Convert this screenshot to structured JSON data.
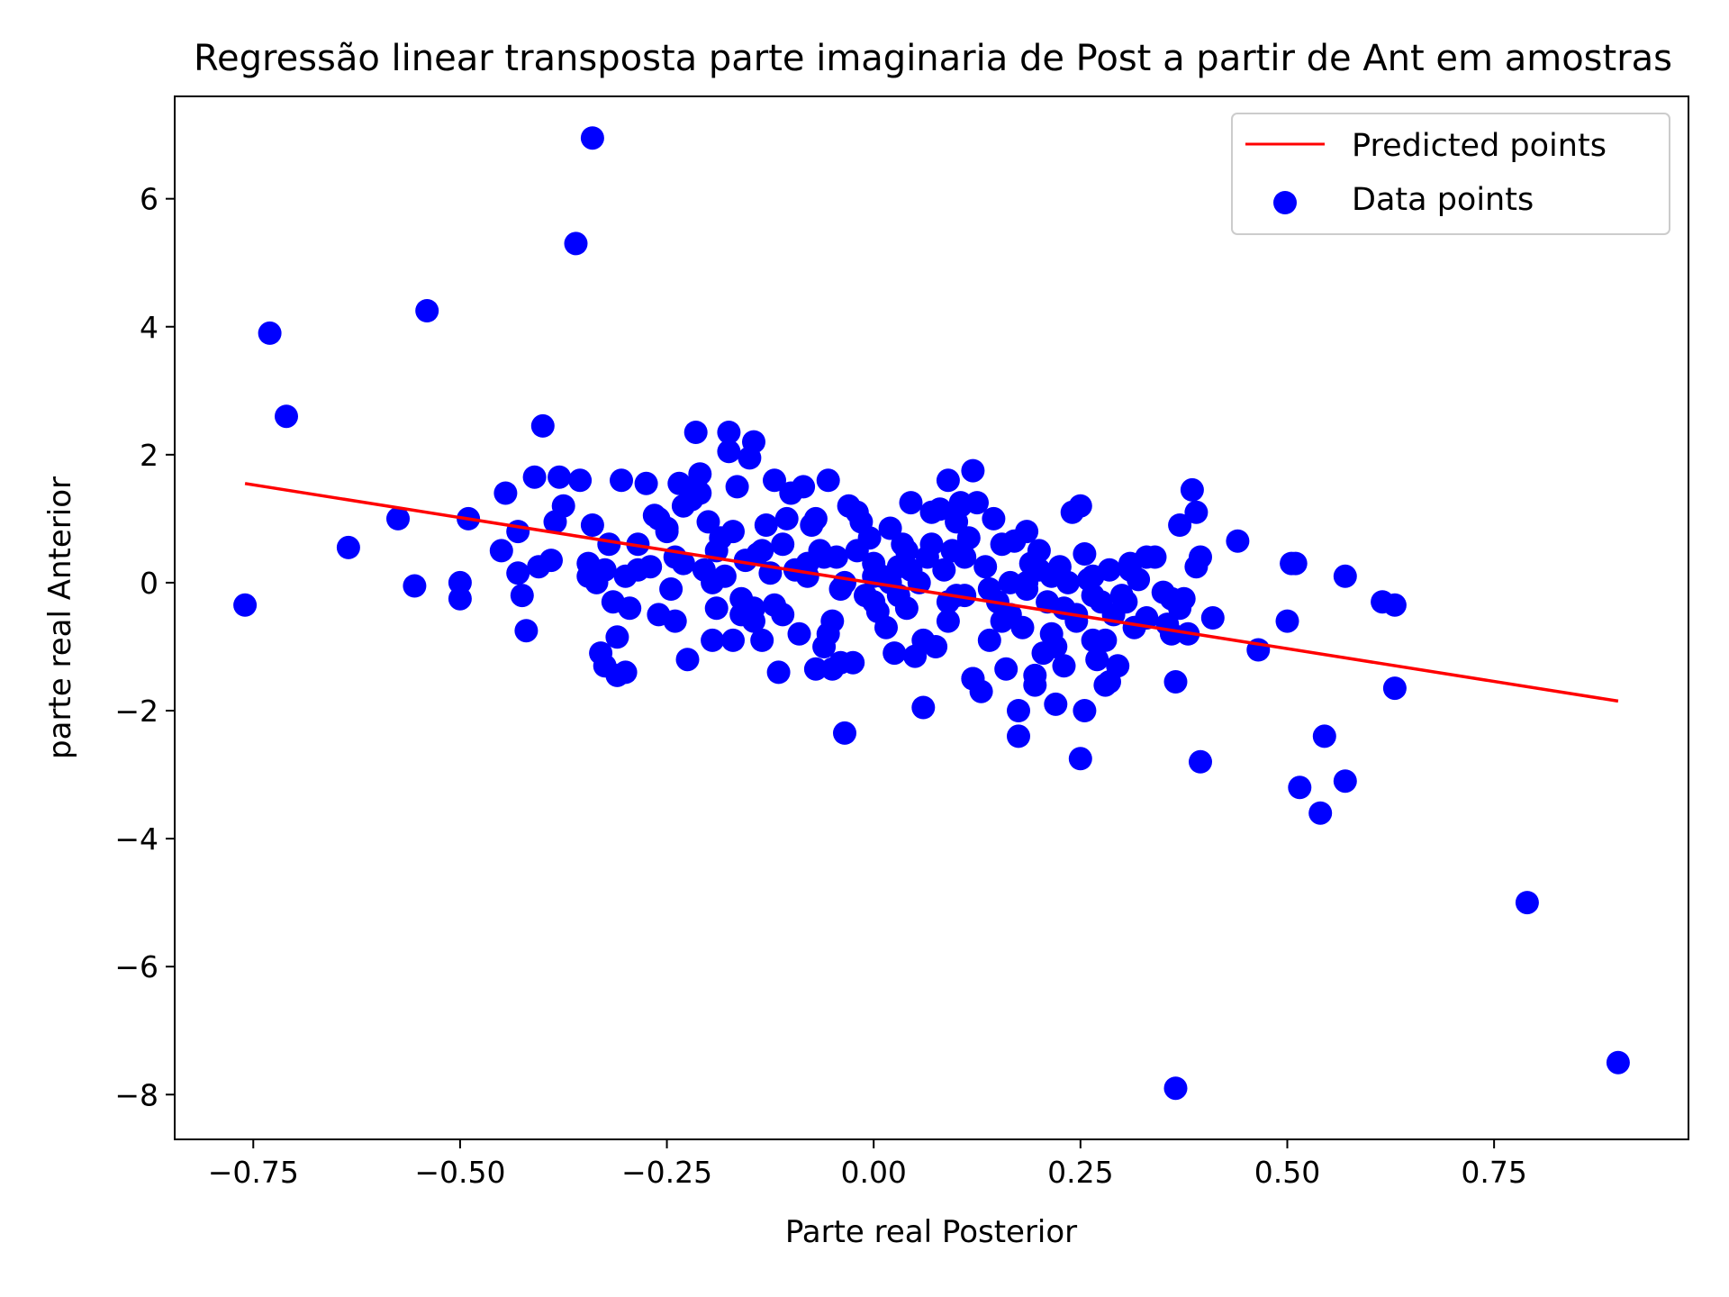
{
  "chart_data": {
    "type": "scatter",
    "title": "Regressão linear transposta parte imaginaria de Post a partir de Ant em amostras",
    "xlabel": "Parte real Posterior",
    "ylabel": "parte real Anterior",
    "xlim": [
      -0.845,
      0.985
    ],
    "ylim": [
      -8.7,
      7.6
    ],
    "xticks": [
      -0.75,
      -0.5,
      -0.25,
      0.0,
      0.25,
      0.5,
      0.75
    ],
    "xtick_labels": [
      "−0.75",
      "−0.50",
      "−0.25",
      "0.00",
      "0.25",
      "0.50",
      "0.75"
    ],
    "yticks": [
      -8,
      -6,
      -4,
      -2,
      0,
      2,
      4,
      6
    ],
    "ytick_labels": [
      "−8",
      "−6",
      "−4",
      "−2",
      "0",
      "2",
      "4",
      "6"
    ],
    "grid": false,
    "legend_position": "top-right",
    "series": [
      {
        "name": "Predicted points",
        "kind": "line",
        "color": "#ff0000",
        "x": [
          -0.76,
          0.9
        ],
        "y": [
          1.55,
          -1.85
        ]
      },
      {
        "name": "Data points",
        "kind": "scatter",
        "color": "#0000ff",
        "x": [
          -0.34,
          -0.36,
          -0.54,
          -0.73,
          -0.71,
          -0.76,
          -0.635,
          -0.575,
          -0.555,
          -0.5,
          -0.5,
          -0.49,
          -0.445,
          -0.45,
          -0.43,
          -0.43,
          -0.425,
          -0.42,
          -0.41,
          -0.405,
          -0.4,
          -0.39,
          -0.385,
          -0.38,
          -0.375,
          -0.355,
          -0.345,
          -0.34,
          -0.335,
          -0.33,
          -0.325,
          -0.32,
          -0.31,
          -0.305,
          -0.3,
          -0.295,
          -0.285,
          -0.275,
          -0.27,
          -0.265,
          -0.26,
          -0.25,
          -0.245,
          -0.24,
          -0.235,
          -0.23,
          -0.225,
          -0.22,
          -0.215,
          -0.21,
          -0.205,
          -0.2,
          -0.195,
          -0.19,
          -0.185,
          -0.18,
          -0.175,
          -0.17,
          -0.165,
          -0.16,
          -0.155,
          -0.15,
          -0.145,
          -0.14,
          -0.135,
          -0.13,
          -0.125,
          -0.12,
          -0.115,
          -0.11,
          -0.105,
          -0.1,
          -0.095,
          -0.09,
          -0.085,
          -0.08,
          -0.075,
          -0.07,
          -0.065,
          -0.06,
          -0.055,
          -0.05,
          -0.045,
          -0.04,
          -0.035,
          -0.03,
          -0.025,
          -0.02,
          -0.015,
          -0.01,
          -0.005,
          0.0,
          0.005,
          0.01,
          0.015,
          0.02,
          0.025,
          0.03,
          0.035,
          0.04,
          0.045,
          0.05,
          0.055,
          0.06,
          0.065,
          0.07,
          0.075,
          0.08,
          0.085,
          0.09,
          0.095,
          0.1,
          0.105,
          0.11,
          0.115,
          0.12,
          0.125,
          0.13,
          0.135,
          0.14,
          0.145,
          0.15,
          0.155,
          0.16,
          0.165,
          0.17,
          0.175,
          0.18,
          0.185,
          0.19,
          0.195,
          0.2,
          0.205,
          0.21,
          0.215,
          0.22,
          0.225,
          0.23,
          0.235,
          0.24,
          0.245,
          0.25,
          0.255,
          0.26,
          0.265,
          0.27,
          0.275,
          0.28,
          0.285,
          0.29,
          0.295,
          0.3,
          0.31,
          0.315,
          0.32,
          0.33,
          0.34,
          0.35,
          0.355,
          0.36,
          0.365,
          0.37,
          0.375,
          0.38,
          0.39,
          0.395,
          0.41,
          0.44,
          0.465,
          0.5,
          0.505,
          0.51,
          0.515,
          0.545,
          0.54,
          0.57,
          0.57,
          0.615,
          0.63,
          0.63,
          0.79,
          0.9,
          0.365,
          0.385,
          0.39,
          -0.21,
          -0.175,
          -0.145,
          -0.02,
          0.105,
          0.25,
          0.09,
          0.12,
          -0.23,
          -0.215,
          -0.12,
          -0.07,
          -0.05,
          0.04,
          0.0,
          -0.19,
          -0.17,
          -0.26,
          -0.285,
          -0.3,
          -0.31,
          0.12,
          0.22,
          0.06,
          -0.035,
          0.175,
          0.195,
          0.255,
          0.285,
          0.36,
          0.37,
          0.395,
          -0.315,
          -0.325,
          -0.11,
          -0.145,
          -0.055,
          0.155,
          0.215,
          0.28,
          0.31,
          -0.135,
          -0.195,
          -0.24,
          -0.345,
          0.0,
          0.03,
          0.07,
          0.09,
          0.14,
          0.2,
          0.23,
          0.265,
          -0.08,
          -0.06,
          0.045,
          0.1,
          0.165,
          0.185,
          0.245,
          0.33,
          -0.25,
          -0.16,
          -0.04,
          0.02,
          0.11,
          0.185,
          0.265,
          0.305
        ],
        "y": [
          6.95,
          5.3,
          4.25,
          3.9,
          2.6,
          -0.35,
          0.55,
          1.0,
          -0.05,
          -0.25,
          0.0,
          1.0,
          1.4,
          0.5,
          0.8,
          0.15,
          -0.2,
          -0.75,
          1.65,
          0.25,
          2.45,
          0.35,
          0.95,
          1.65,
          1.2,
          1.6,
          0.1,
          0.9,
          0.0,
          -1.1,
          -1.3,
          0.6,
          -0.85,
          1.6,
          0.1,
          -0.4,
          0.6,
          1.55,
          0.25,
          1.05,
          -0.5,
          0.85,
          -0.1,
          -0.6,
          1.55,
          0.3,
          -1.2,
          1.3,
          2.35,
          1.7,
          0.2,
          0.95,
          -0.9,
          -0.4,
          0.7,
          0.1,
          2.35,
          -0.9,
          1.5,
          -0.25,
          0.35,
          1.95,
          -0.6,
          0.45,
          -0.9,
          0.9,
          0.15,
          -0.35,
          -1.4,
          0.6,
          1.0,
          1.4,
          0.2,
          -0.8,
          1.5,
          0.1,
          0.9,
          -1.35,
          0.5,
          -1.0,
          1.6,
          -1.35,
          0.4,
          -1.25,
          0.0,
          1.2,
          -1.25,
          0.5,
          0.95,
          -0.2,
          0.7,
          0.3,
          -0.45,
          0.1,
          -0.7,
          0.85,
          -1.1,
          0.25,
          0.6,
          -0.4,
          1.25,
          -1.15,
          0.0,
          -0.9,
          0.4,
          1.1,
          -1.0,
          1.15,
          0.2,
          -0.6,
          0.5,
          0.95,
          1.25,
          -0.2,
          0.7,
          -1.5,
          1.25,
          -1.7,
          0.25,
          -0.9,
          1.0,
          -0.3,
          0.6,
          -1.35,
          0.0,
          0.65,
          -2.0,
          -0.7,
          0.8,
          0.3,
          -1.45,
          0.5,
          -1.1,
          -0.3,
          0.1,
          -1.0,
          0.25,
          -1.3,
          0.0,
          1.1,
          -0.5,
          -2.75,
          0.45,
          0.05,
          -0.9,
          -1.2,
          -0.3,
          -1.6,
          0.2,
          -0.5,
          -1.3,
          -0.2,
          0.3,
          -0.7,
          0.05,
          -0.55,
          0.4,
          -0.15,
          -0.65,
          -0.8,
          -1.55,
          -0.4,
          -0.25,
          -0.8,
          0.25,
          -2.8,
          -0.55,
          0.65,
          -1.05,
          -0.6,
          0.3,
          0.3,
          -3.2,
          -2.4,
          -3.6,
          -3.1,
          0.1,
          -0.3,
          -0.35,
          -1.65,
          -5.0,
          -7.5,
          -7.9,
          1.45,
          1.1,
          1.4,
          2.05,
          2.2,
          1.1,
          1.2,
          1.2,
          1.6,
          1.75,
          1.2,
          1.5,
          1.6,
          1.0,
          -0.6,
          0.5,
          -0.3,
          0.5,
          0.8,
          1.0,
          0.2,
          -1.4,
          -1.45,
          -1.5,
          -1.9,
          -1.95,
          -2.35,
          -2.4,
          -1.6,
          -2.0,
          -1.55,
          -0.25,
          0.9,
          0.4,
          -0.3,
          0.2,
          -0.5,
          -0.4,
          -0.8,
          -0.6,
          -0.8,
          -0.9,
          0.2,
          0.5,
          0.0,
          0.4,
          0.3,
          0.1,
          -0.2,
          0.6,
          -0.3,
          -0.1,
          0.2,
          -0.4,
          0.1,
          0.3,
          0.4,
          0.2,
          -0.2,
          -0.5,
          0.0,
          -0.6,
          0.4,
          0.8,
          -0.5,
          -0.1,
          0.0,
          0.4,
          -0.1,
          -0.2,
          -0.3
        ]
      }
    ]
  }
}
